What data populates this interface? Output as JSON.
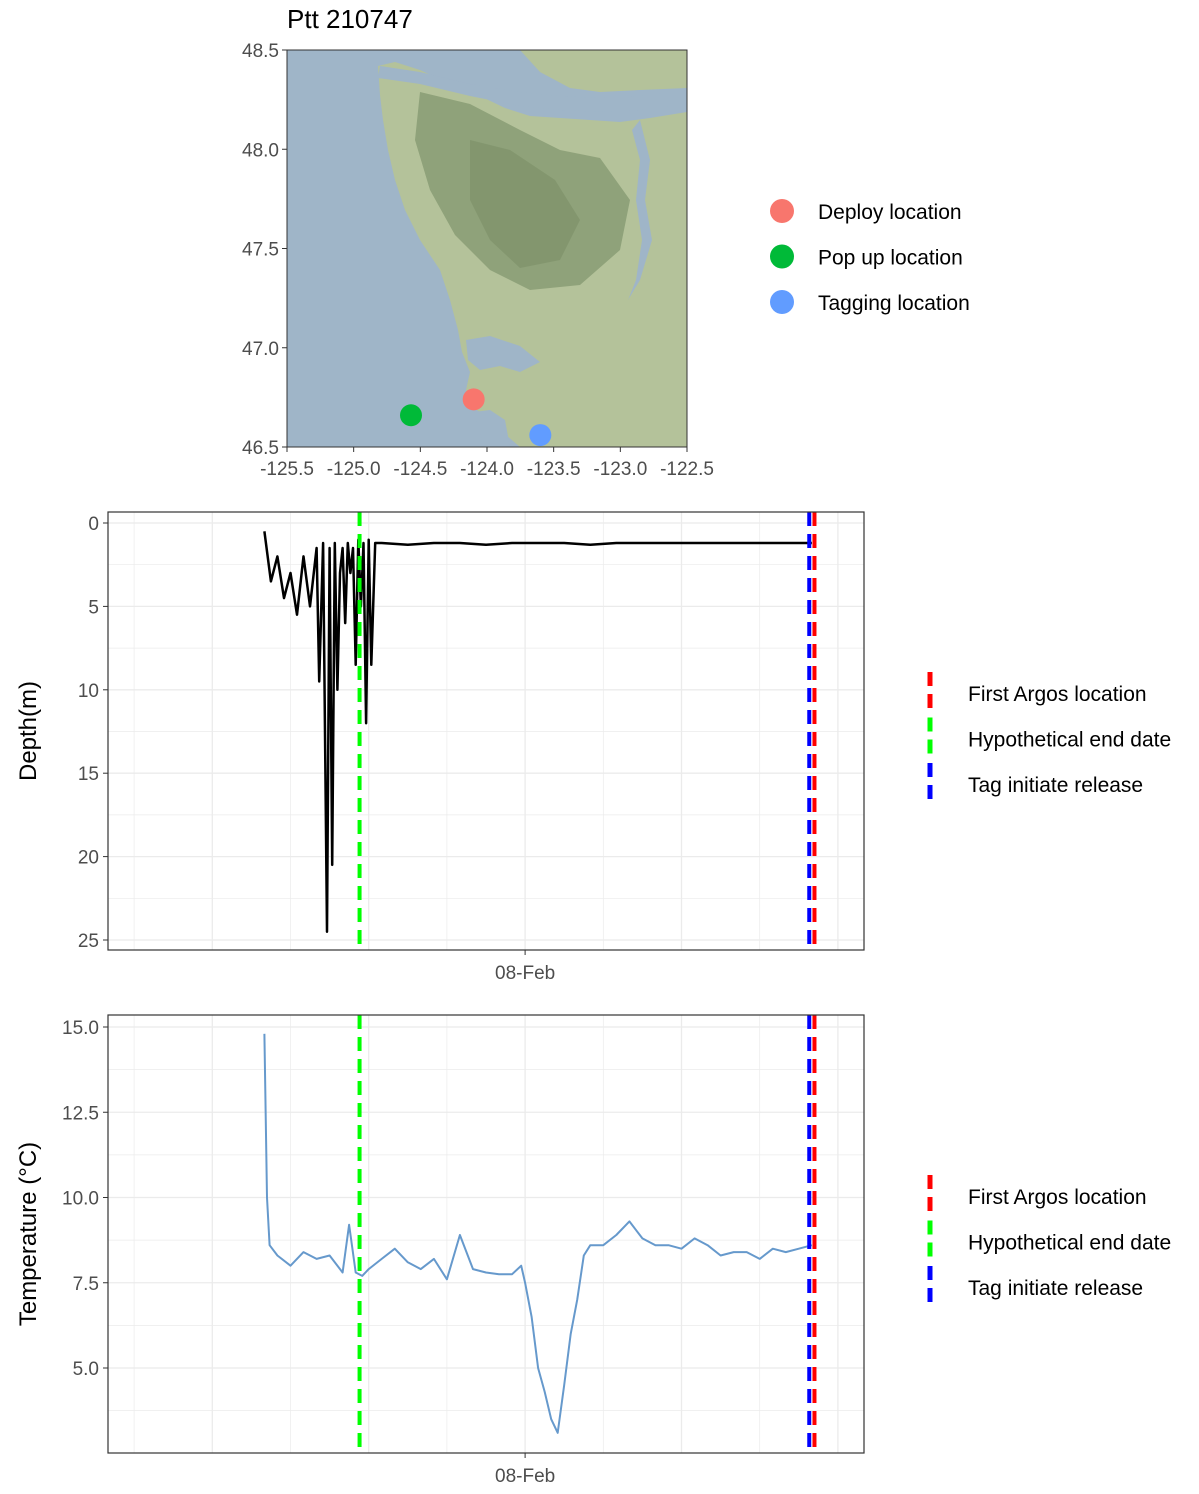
{
  "chart_data": [
    {
      "type": "scatter",
      "title": "Ptt 210747",
      "xlabel": "",
      "ylabel": "",
      "xlim": [
        -125.5,
        -122.5
      ],
      "ylim": [
        46.5,
        48.5
      ],
      "xticks": [
        "-125.5",
        "-125.0",
        "-124.5",
        "-124.0",
        "-123.5",
        "-123.0",
        "-122.5"
      ],
      "yticks": [
        "46.5",
        "47.0",
        "47.5",
        "48.0",
        "48.5"
      ],
      "background": "map",
      "legend_position": "right",
      "points": [
        {
          "name": "Deploy location",
          "x": -124.1,
          "y": 46.74,
          "color": "#f8766d"
        },
        {
          "name": "Pop up location",
          "x": -124.57,
          "y": 46.66,
          "color": "#00ba38"
        },
        {
          "name": "Tagging location",
          "x": -123.6,
          "y": 46.56,
          "color": "#619cff"
        }
      ]
    },
    {
      "type": "line",
      "xlabel": "",
      "ylabel": "Depth(m)",
      "y_reversed": true,
      "ylim": [
        0,
        25
      ],
      "yticks": [
        "0",
        "5",
        "10",
        "15",
        "20",
        "25"
      ],
      "x_unit": "hours from 08-Feb 00:00",
      "xlim": [
        -32,
        26
      ],
      "xticks": [
        {
          "at": 0,
          "label": "08-Feb"
        }
      ],
      "grid": true,
      "legend_position": "right",
      "series": [
        {
          "color": "#000000",
          "x": [
            -20,
            -19.5,
            -19,
            -18.5,
            -18,
            -17.5,
            -17,
            -16.5,
            -16,
            -15.8,
            -15.5,
            -15.2,
            -15,
            -14.8,
            -14.6,
            -14.4,
            -14.2,
            -14,
            -13.8,
            -13.6,
            -13.4,
            -13.2,
            -13,
            -12.8,
            -12.6,
            -12.4,
            -12.2,
            -12,
            -11.8,
            -11.5,
            -11,
            -9,
            -7,
            -5,
            -3,
            -1,
            1,
            3,
            5,
            7,
            9,
            11,
            13,
            15,
            17,
            19,
            21,
            22
          ],
          "values": [
            0.5,
            3.5,
            2,
            4.5,
            3,
            5.5,
            2,
            5,
            1.5,
            9.5,
            1.2,
            24.5,
            1.5,
            20.5,
            1.2,
            10,
            3,
            1.5,
            6,
            1.2,
            3,
            1.5,
            8.5,
            1,
            5,
            1.2,
            12,
            1,
            8.5,
            1.2,
            1.2,
            1.3,
            1.2,
            1.2,
            1.3,
            1.2,
            1.2,
            1.2,
            1.3,
            1.2,
            1.2,
            1.2,
            1.2,
            1.2,
            1.2,
            1.2,
            1.2,
            1.2
          ]
        }
      ],
      "vlines": [
        {
          "name": "First Argos location",
          "x": 22.2,
          "color": "#ff0000"
        },
        {
          "name": "Hypothetical end date",
          "x": -12.7,
          "color": "#00ff00"
        },
        {
          "name": "Tag initiate release",
          "x": 21.8,
          "color": "#0000ff"
        }
      ]
    },
    {
      "type": "line",
      "xlabel": "",
      "ylabel": "Temperature (°C)",
      "ylim": [
        2.5,
        15.4
      ],
      "yticks": [
        "5.0",
        "7.5",
        "10.0",
        "12.5",
        "15.0"
      ],
      "x_unit": "hours from 08-Feb 00:00",
      "xlim": [
        -32,
        26
      ],
      "xticks": [
        {
          "at": 0,
          "label": "08-Feb"
        }
      ],
      "grid": true,
      "legend_position": "right",
      "series": [
        {
          "color": "#6699cc",
          "x": [
            -20,
            -19.8,
            -19.6,
            -19,
            -18,
            -17,
            -16,
            -15,
            -14,
            -13.5,
            -13,
            -12.5,
            -12,
            -11,
            -10,
            -9,
            -8,
            -7,
            -6,
            -5,
            -4,
            -3,
            -2,
            -1,
            -0.3,
            0,
            0.5,
            1,
            1.5,
            2,
            2.5,
            3,
            3.5,
            4,
            4.5,
            5,
            6,
            7,
            8,
            9,
            10,
            11,
            12,
            13,
            14,
            15,
            16,
            17,
            18,
            19,
            20,
            21,
            22
          ],
          "values": [
            14.8,
            10,
            8.6,
            8.3,
            8.0,
            8.4,
            8.2,
            8.3,
            7.8,
            9.2,
            7.8,
            7.7,
            7.9,
            8.2,
            8.5,
            8.1,
            7.9,
            8.2,
            7.6,
            8.9,
            7.9,
            7.8,
            7.75,
            7.75,
            8.0,
            7.5,
            6.5,
            5.0,
            4.3,
            3.5,
            3.1,
            4.5,
            6.0,
            7.0,
            8.3,
            8.6,
            8.6,
            8.9,
            9.3,
            8.8,
            8.6,
            8.6,
            8.5,
            8.8,
            8.6,
            8.3,
            8.4,
            8.4,
            8.2,
            8.5,
            8.4,
            8.5,
            8.6
          ]
        }
      ],
      "vlines": [
        {
          "name": "First Argos location",
          "x": 22.2,
          "color": "#ff0000"
        },
        {
          "name": "Hypothetical end date",
          "x": -12.7,
          "color": "#00ff00"
        },
        {
          "name": "Tag initiate release",
          "x": 21.8,
          "color": "#0000ff"
        }
      ]
    }
  ]
}
